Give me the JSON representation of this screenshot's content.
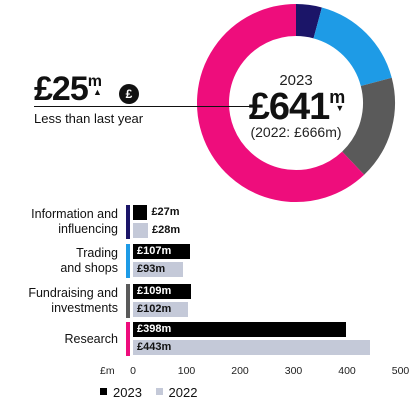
{
  "headline": {
    "change_value": "£25",
    "change_unit": "m",
    "change_desc": "Less than last year",
    "icon": "pound-coin-icon",
    "year": "2023",
    "total_value": "£641",
    "total_unit": "m",
    "previous": "(2022: £666m)"
  },
  "colors": {
    "research": "#ee0d7c",
    "fundraising": "#5a5a5a",
    "trading": "#1e9be6",
    "information": "#1b1568",
    "bar_2023": "#000000",
    "bar_2022": "#c4c9d8"
  },
  "chart_data": [
    {
      "type": "pie",
      "variant": "donut",
      "year": "2023",
      "slices": [
        {
          "category": "Information and influencing",
          "value": 27,
          "color": "#1b1568"
        },
        {
          "category": "Trading and shops",
          "value": 107,
          "color": "#1e9be6"
        },
        {
          "category": "Fundraising and investments",
          "value": 109,
          "color": "#5a5a5a"
        },
        {
          "category": "Research",
          "value": 398,
          "color": "#ee0d7c"
        }
      ]
    },
    {
      "type": "bar",
      "orientation": "horizontal",
      "categories": [
        "Information and\ninfluencing",
        "Trading\nand shops",
        "Fundraising and\ninvestments",
        "Research"
      ],
      "series": [
        {
          "name": "2023",
          "values": [
            27,
            107,
            109,
            398
          ],
          "labels": [
            "£27m",
            "£107m",
            "£109m",
            "£398m"
          ],
          "color": "#000000"
        },
        {
          "name": "2022",
          "values": [
            28,
            93,
            102,
            443
          ],
          "labels": [
            "£28m",
            "£93m",
            "£102m",
            "£443m"
          ],
          "color": "#c4c9d8"
        }
      ],
      "xlabel": "£m",
      "xlim": [
        0,
        500
      ],
      "xticks": [
        "0",
        "100",
        "200",
        "300",
        "400",
        "500"
      ],
      "legend_position": "bottom-left"
    }
  ]
}
